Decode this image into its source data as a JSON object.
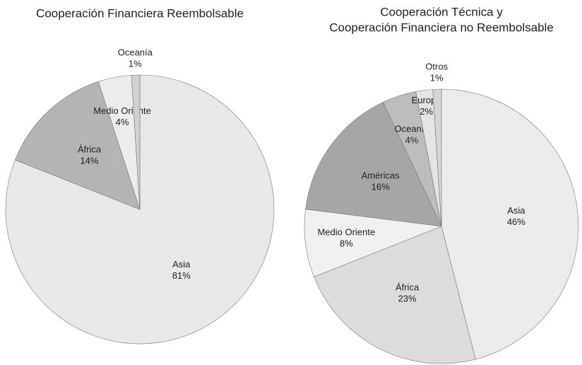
{
  "chart_data": [
    {
      "type": "pie",
      "title": [
        "Cooperación Financiera Reembolsable"
      ],
      "categories": [
        "Asia",
        "África",
        "Medio Oriente",
        "Oceanía"
      ],
      "values": [
        81,
        14,
        4,
        1
      ],
      "value_labels": [
        "81%",
        "14%",
        "4%",
        "1%"
      ],
      "colors": [
        "#e8e8e8",
        "#b4b4b4",
        "#ececec",
        "#d0d0d0"
      ]
    },
    {
      "type": "pie",
      "title": [
        "Cooperación Técnica y",
        "Cooperación Financiera no Reembolsable"
      ],
      "categories": [
        "Asia",
        "África",
        "Medio Oriente",
        "Américas",
        "Oceanía",
        "Europa",
        "Otros"
      ],
      "values": [
        46,
        23,
        8,
        16,
        4,
        2,
        1
      ],
      "value_labels": [
        "46%",
        "23%",
        "8%",
        "16%",
        "4%",
        "2%",
        "1%"
      ],
      "colors": [
        "#ebebeb",
        "#dcdcdc",
        "#f0f0f0",
        "#a6a6a6",
        "#bcbcbc",
        "#e4e4e4",
        "#d6d6d6"
      ]
    }
  ]
}
